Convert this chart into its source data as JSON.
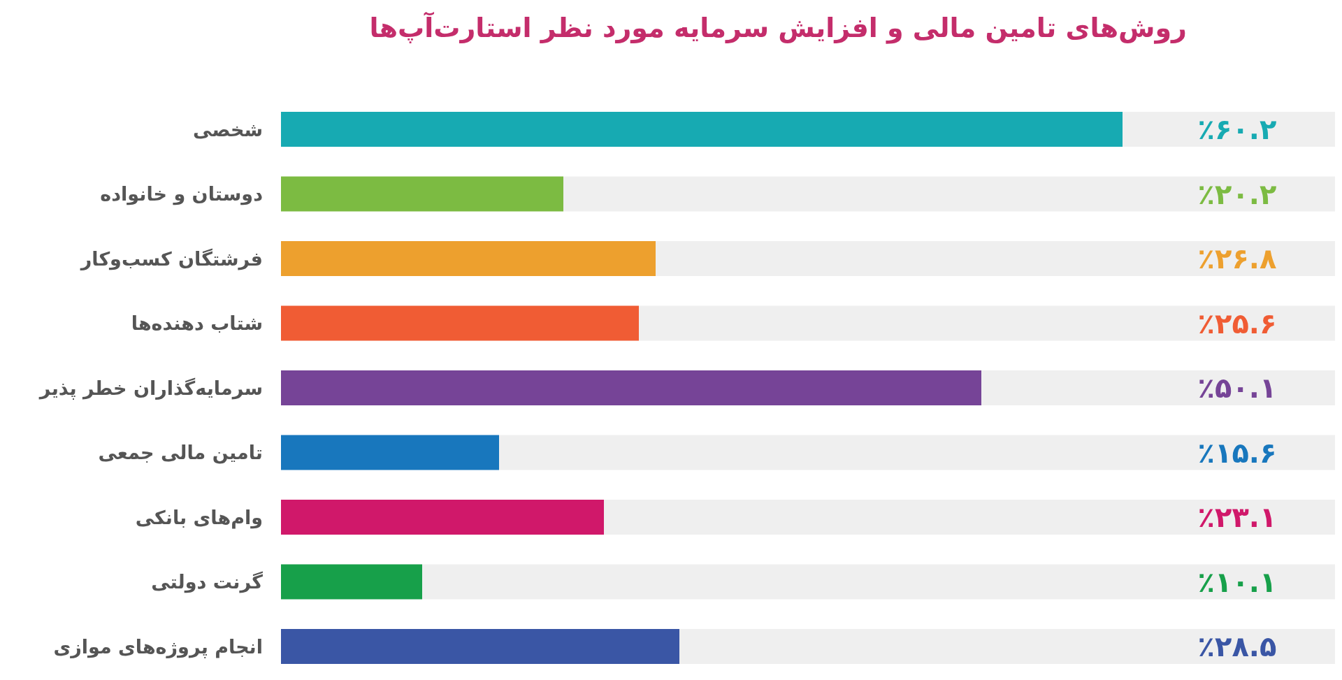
{
  "chart_data": {
    "type": "bar",
    "orientation": "horizontal",
    "title": "روش‌های تامین مالی و افزایش سرمایه مورد نظر استارت‌آپ‌ها",
    "categories": [
      "شخصی",
      "دوستان و خانواده",
      "فرشتگان کسب‌وکار",
      "شتاب دهنده‌ها",
      "سرمایه‌گذاران خطر پذیر",
      "تامین مالی جمعی",
      "وام‌های بانکی",
      "گرنت دولتی",
      "انجام پروژه‌های موازی"
    ],
    "values": [
      60.2,
      20.2,
      26.8,
      25.6,
      50.1,
      15.6,
      23.1,
      10.1,
      28.5
    ],
    "colors": [
      "#17aab2",
      "#7cbb42",
      "#eda02e",
      "#f05c34",
      "#764497",
      "#1877bd",
      "#d0186a",
      "#17a04a",
      "#3a56a5"
    ],
    "value_labels": [
      "٪۶۰.۲",
      "٪۲۰.۲",
      "٪۲۶.۸",
      "٪۲۵.۶",
      "٪۵۰.۱",
      "٪۱۵.۶",
      "٪۲۳.۱",
      "٪۱۰.۱",
      "٪۲۸.۵"
    ],
    "xlim": [
      0,
      75.4
    ],
    "tick_labels": "y"
  }
}
